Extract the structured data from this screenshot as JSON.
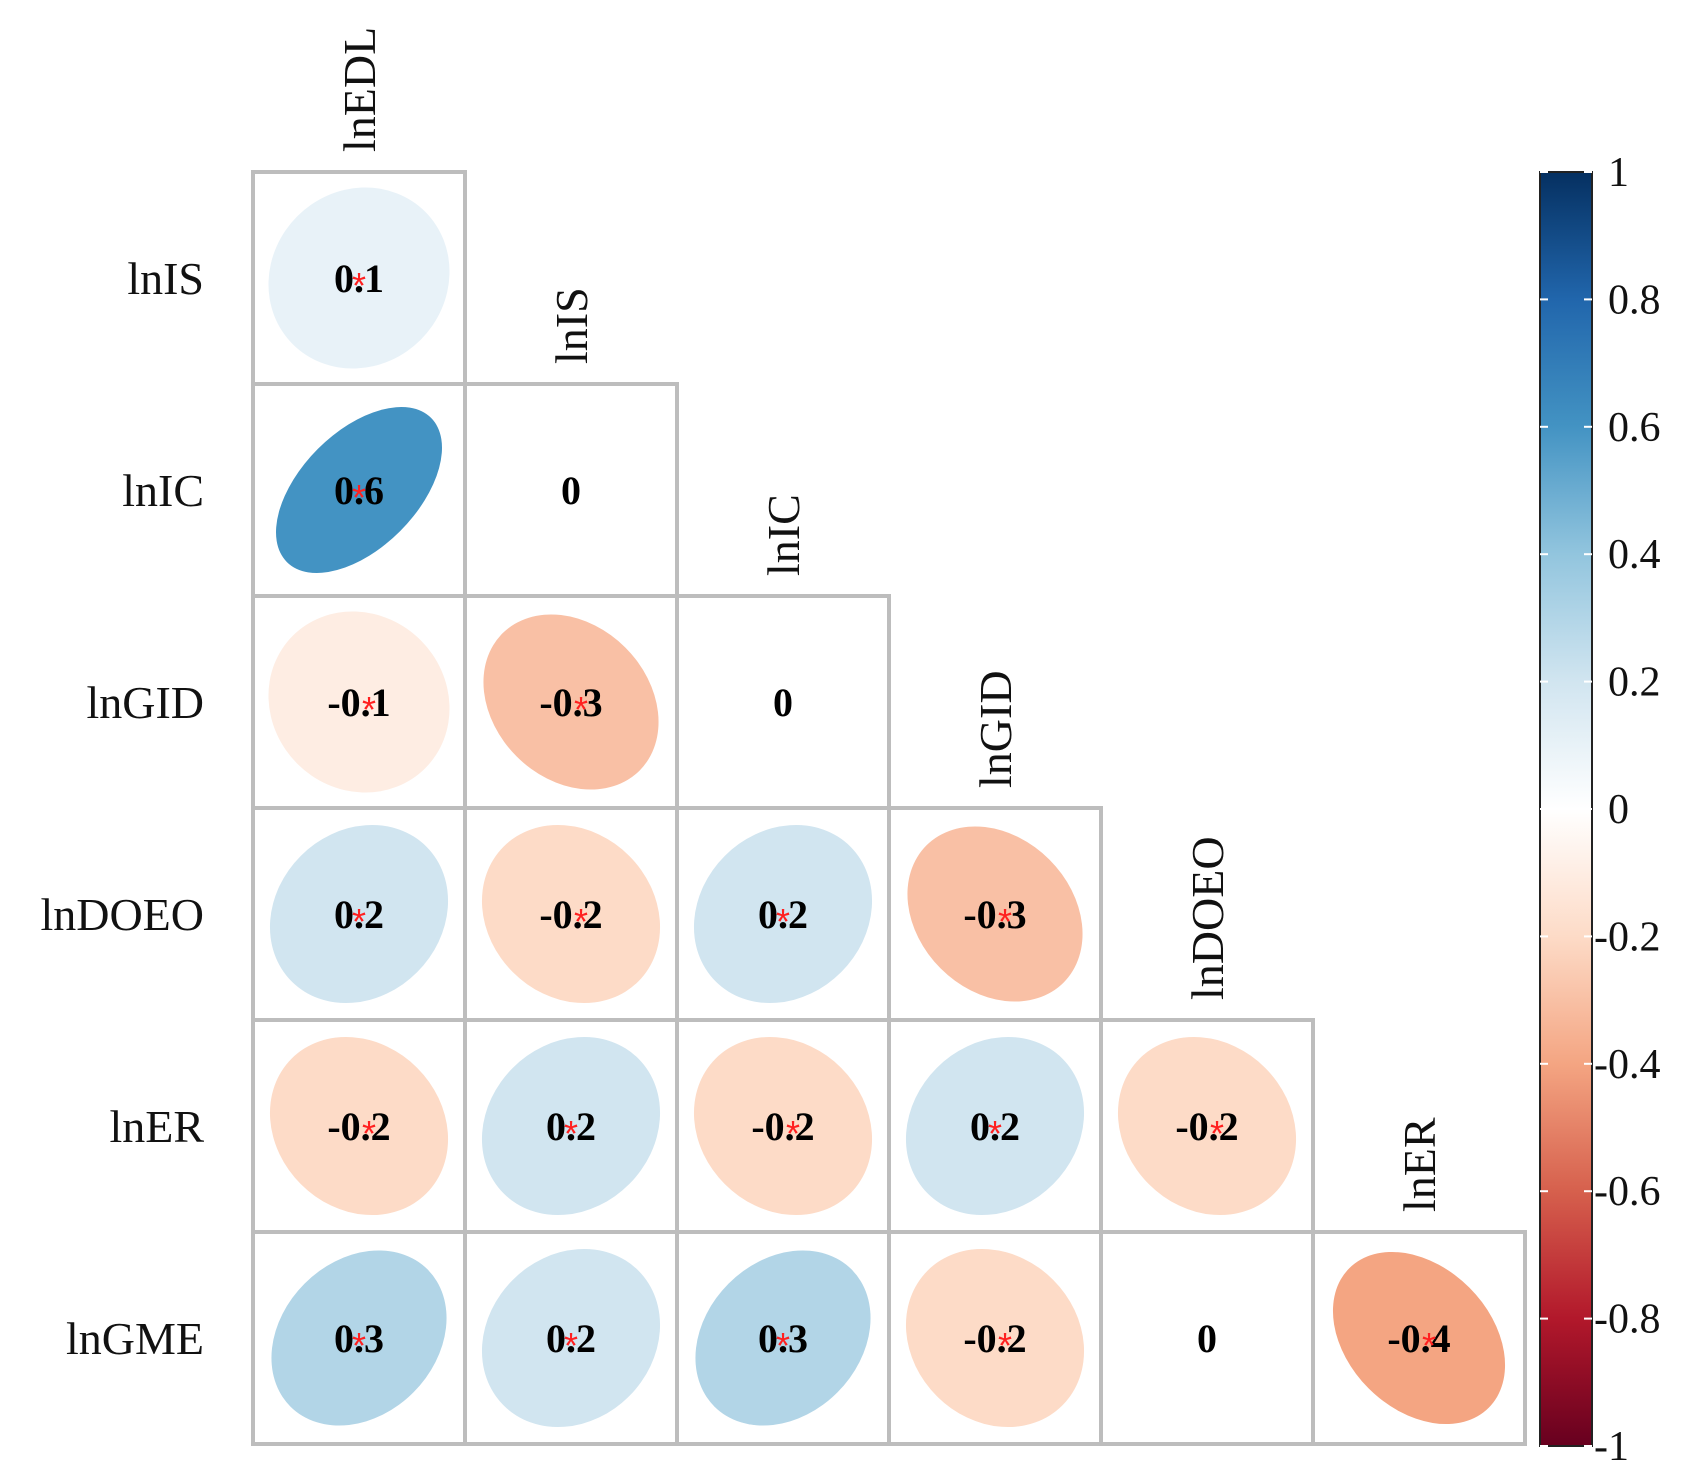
{
  "chart_data": {
    "type": "heatmap",
    "subtype": "correlation-ellipse-lower-triangle",
    "variables": [
      "lnEDL",
      "lnIS",
      "lnIC",
      "lnGID",
      "lnDOEO",
      "lnER",
      "lnGME"
    ],
    "column_labels": [
      "lnEDL",
      "lnIS",
      "lnIC",
      "lnGID",
      "lnDOEO",
      "lnER"
    ],
    "row_labels": [
      "lnIS",
      "lnIC",
      "lnGID",
      "lnDOEO",
      "lnER",
      "lnGME"
    ],
    "cells": [
      {
        "row": "lnIS",
        "col": "lnEDL",
        "value": 0.1,
        "label": "0.1",
        "significant": true
      },
      {
        "row": "lnIC",
        "col": "lnEDL",
        "value": 0.6,
        "label": "0.6",
        "significant": true
      },
      {
        "row": "lnIC",
        "col": "lnIS",
        "value": 0.0,
        "label": "0",
        "significant": false
      },
      {
        "row": "lnGID",
        "col": "lnEDL",
        "value": -0.1,
        "label": "-0.1",
        "significant": true
      },
      {
        "row": "lnGID",
        "col": "lnIS",
        "value": -0.3,
        "label": "-0.3",
        "significant": true
      },
      {
        "row": "lnGID",
        "col": "lnIC",
        "value": 0.0,
        "label": "0",
        "significant": false
      },
      {
        "row": "lnDOEO",
        "col": "lnEDL",
        "value": 0.2,
        "label": "0.2",
        "significant": true
      },
      {
        "row": "lnDOEO",
        "col": "lnIS",
        "value": -0.2,
        "label": "-0.2",
        "significant": true
      },
      {
        "row": "lnDOEO",
        "col": "lnIC",
        "value": 0.2,
        "label": "0.2",
        "significant": true
      },
      {
        "row": "lnDOEO",
        "col": "lnGID",
        "value": -0.3,
        "label": "-0.3",
        "significant": true
      },
      {
        "row": "lnER",
        "col": "lnEDL",
        "value": -0.2,
        "label": "-0.2",
        "significant": true
      },
      {
        "row": "lnER",
        "col": "lnIS",
        "value": 0.2,
        "label": "0.2",
        "significant": true
      },
      {
        "row": "lnER",
        "col": "lnIC",
        "value": -0.2,
        "label": "-0.2",
        "significant": true
      },
      {
        "row": "lnER",
        "col": "lnGID",
        "value": 0.2,
        "label": "0.2",
        "significant": true
      },
      {
        "row": "lnER",
        "col": "lnDOEO",
        "value": -0.2,
        "label": "-0.2",
        "significant": true
      },
      {
        "row": "lnGME",
        "col": "lnEDL",
        "value": 0.3,
        "label": "0.3",
        "significant": true
      },
      {
        "row": "lnGME",
        "col": "lnIS",
        "value": 0.2,
        "label": "0.2",
        "significant": true
      },
      {
        "row": "lnGME",
        "col": "lnIC",
        "value": 0.3,
        "label": "0.3",
        "significant": true
      },
      {
        "row": "lnGME",
        "col": "lnGID",
        "value": -0.2,
        "label": "-0.2",
        "significant": true
      },
      {
        "row": "lnGME",
        "col": "lnDOEO",
        "value": 0.0,
        "label": "0",
        "significant": false
      },
      {
        "row": "lnGME",
        "col": "lnER",
        "value": -0.4,
        "label": "-0.4",
        "significant": true
      }
    ],
    "significance_marker": "*",
    "colorbar": {
      "range": [
        -1,
        1
      ],
      "ticks": [
        1,
        0.8,
        0.6,
        0.4,
        0.2,
        0,
        -0.2,
        -0.4,
        -0.6,
        -0.8,
        -1
      ],
      "tick_labels": [
        "1",
        "0.8",
        "0.6",
        "0.4",
        "0.2",
        "0",
        "-0.2",
        "-0.4",
        "-0.6",
        "-0.8",
        "-1"
      ],
      "colors": [
        "#67001f",
        "#b2182b",
        "#d6604d",
        "#f4a582",
        "#fddbc7",
        "#ffffff",
        "#d1e5f0",
        "#92c5de",
        "#4393c3",
        "#2166ac",
        "#053061"
      ],
      "placement": "right"
    }
  }
}
